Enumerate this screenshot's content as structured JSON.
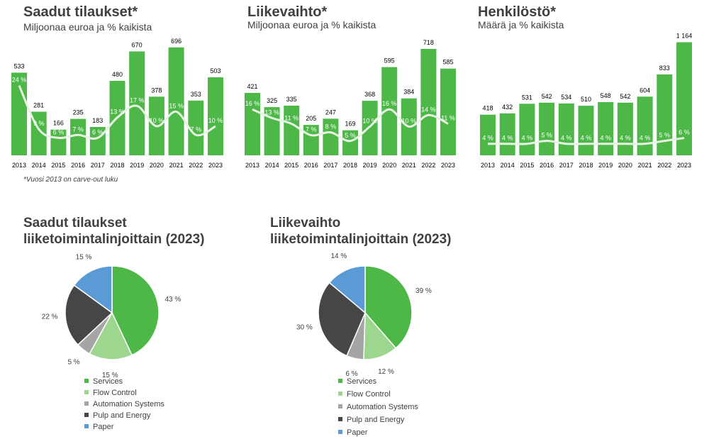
{
  "chart_data": [
    {
      "type": "bar",
      "id": "orders",
      "title": "Saadut tilaukset*",
      "subtitle": "Miljoonaa euroa ja % kaikista",
      "categories": [
        "2013",
        "2014",
        "2015",
        "2016",
        "2017",
        "2018",
        "2019",
        "2020",
        "2021",
        "2022",
        "2023"
      ],
      "values": [
        533,
        281,
        166,
        235,
        183,
        480,
        670,
        378,
        696,
        353,
        503
      ],
      "value_labels": [
        "533",
        "281",
        "166",
        "235",
        "183",
        "480",
        "670",
        "378",
        "696",
        "353",
        "503"
      ],
      "line_values": [
        24,
        9,
        6,
        7,
        6,
        13,
        17,
        10,
        15,
        7,
        10
      ],
      "line_labels": [
        "24 %",
        "9 %",
        "6 %",
        "7 %",
        "6 %",
        "13 %",
        "17 %",
        "10 %",
        "15 %",
        "7 %",
        "10 %"
      ],
      "ylim": [
        0,
        750
      ],
      "line_ylim": [
        0,
        40
      ],
      "note": "*Vuosi 2013 on carve-out luku"
    },
    {
      "type": "bar",
      "id": "revenue",
      "title": "Liikevaihto*",
      "subtitle": "Miljoonaa euroa ja % kaikista",
      "categories": [
        "2013",
        "2014",
        "2015",
        "2016",
        "2017",
        "2018",
        "2019",
        "2020",
        "2021",
        "2022",
        "2023"
      ],
      "values": [
        421,
        325,
        335,
        205,
        247,
        169,
        368,
        595,
        384,
        718,
        585
      ],
      "value_labels": [
        "421",
        "325",
        "335",
        "205",
        "247",
        "169",
        "368",
        "595",
        "384",
        "718",
        "585"
      ],
      "line_values": [
        16,
        13,
        11,
        7,
        8,
        5,
        10,
        16,
        10,
        14,
        11
      ],
      "line_labels": [
        "16 %",
        "13 %",
        "11 %",
        "7 %",
        "8 %",
        "5 %",
        "10 %",
        "16 %",
        "10 %",
        "14 %",
        "11 %"
      ],
      "ylim": [
        0,
        775
      ],
      "line_ylim": [
        0,
        40
      ]
    },
    {
      "type": "bar",
      "id": "personnel",
      "title": "Henkilöstö*",
      "subtitle": "Määrä ja % kaikista",
      "categories": [
        "2013",
        "2014",
        "2015",
        "2016",
        "2017",
        "2018",
        "2019",
        "2020",
        "2021",
        "2022",
        "2023"
      ],
      "values": [
        418,
        432,
        531,
        542,
        534,
        510,
        548,
        542,
        604,
        833,
        1164
      ],
      "value_labels": [
        "418",
        "432",
        "531",
        "542",
        "534",
        "510",
        "548",
        "542",
        "604",
        "833",
        "1 164"
      ],
      "line_values": [
        4,
        4,
        4,
        5,
        4,
        4,
        4,
        4,
        4,
        5,
        6
      ],
      "line_labels": [
        "4 %",
        "4 %",
        "4 %",
        "5 %",
        "4 %",
        "4 %",
        "4 %",
        "4 %",
        "4 %",
        "5 %",
        "6 %"
      ],
      "ylim": [
        0,
        1190
      ],
      "line_ylim": [
        0,
        40
      ]
    },
    {
      "type": "pie",
      "id": "orders-pie",
      "title_line1": "Saadut tilaukset",
      "title_line2": "liiketoimintalinjoittain (2023)",
      "categories": [
        "Services",
        "Flow Control",
        "Automation Systems",
        "Pulp and Energy",
        "Paper"
      ],
      "values": [
        43,
        15,
        5,
        22,
        15
      ],
      "labels": [
        "43 %",
        "15 %",
        "5 %",
        "22 %",
        "15 %"
      ]
    },
    {
      "type": "pie",
      "id": "revenue-pie",
      "title_line1": "Liikevaihto",
      "title_line2": "liiketoimintalinjoittain (2023)",
      "categories": [
        "Services",
        "Flow Control",
        "Automation Systems",
        "Pulp and Energy",
        "Paper"
      ],
      "values": [
        39,
        12,
        6,
        30,
        14
      ],
      "labels": [
        "39 %",
        "12 %",
        "6 %",
        "30 %",
        "14 %"
      ]
    }
  ],
  "colors": {
    "bar": "#4db848",
    "line": "#e8f2e4",
    "slices": [
      "#4db848",
      "#9dd68e",
      "#a5a5a5",
      "#464646",
      "#5b9bd5"
    ],
    "text": "#404040"
  }
}
